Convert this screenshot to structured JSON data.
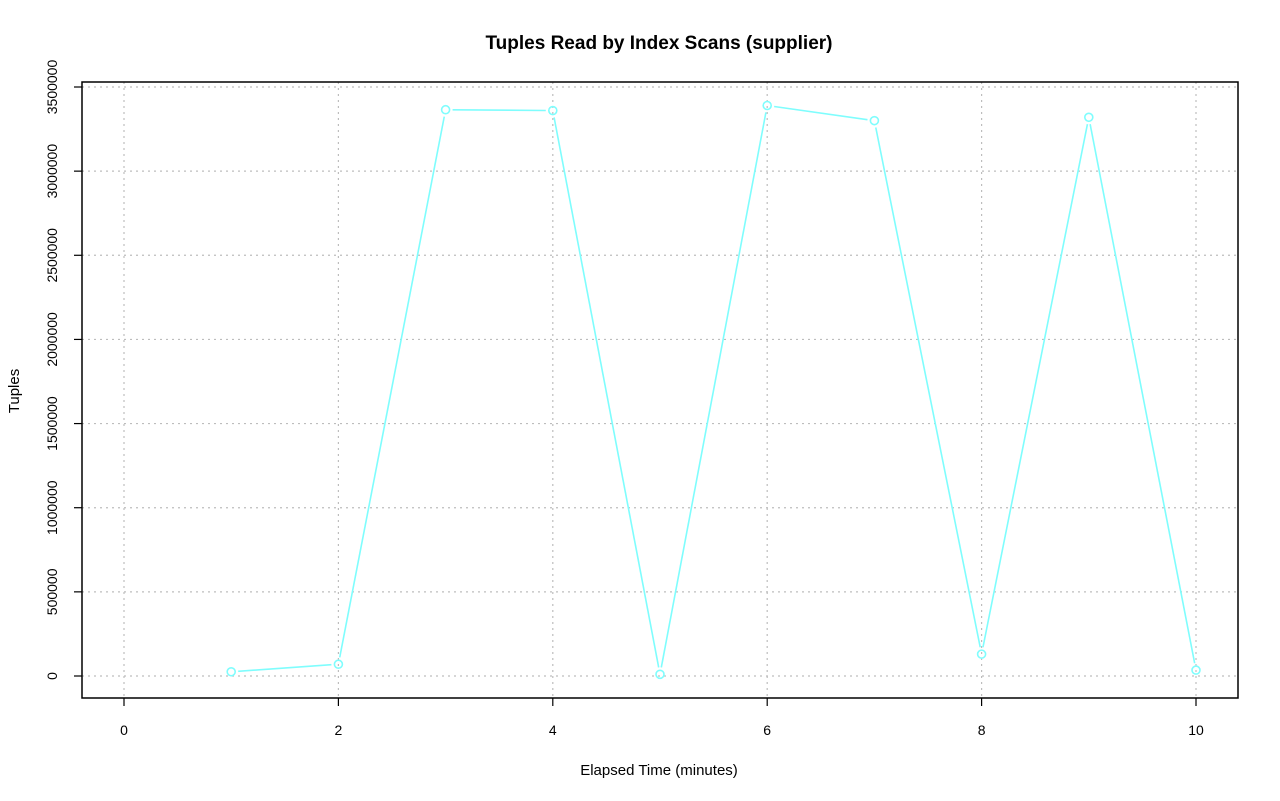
{
  "chart_data": {
    "type": "line",
    "title": "Tuples Read by Index Scans (supplier)",
    "xlabel": "Elapsed Time (minutes)",
    "ylabel": "Tuples",
    "xlim": [
      0,
      10
    ],
    "ylim": [
      0,
      3500000
    ],
    "x_ticks": [
      0,
      2,
      4,
      6,
      8,
      10
    ],
    "y_ticks": [
      0,
      500000,
      1000000,
      1500000,
      2000000,
      2500000,
      3000000,
      3500000
    ],
    "grid": true,
    "series": [
      {
        "color": "#7ffdfd",
        "marker": "circle-open",
        "x": [
          1,
          2,
          3,
          4,
          5,
          6,
          7,
          8,
          9,
          10
        ],
        "values": [
          25000,
          70000,
          3365000,
          3360000,
          10000,
          3390000,
          3300000,
          130000,
          3320000,
          35000
        ]
      }
    ]
  }
}
